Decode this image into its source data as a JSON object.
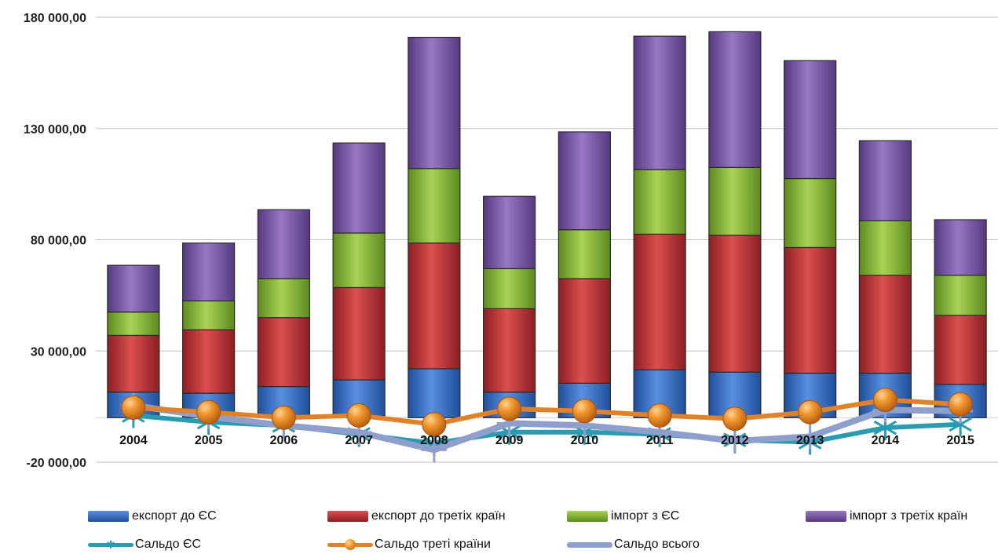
{
  "chart_data": {
    "type": "bar",
    "stacked": true,
    "categories": [
      "2004",
      "2005",
      "2006",
      "2007",
      "2008",
      "2009",
      "2010",
      "2011",
      "2012",
      "2013",
      "2014",
      "2015"
    ],
    "ylim": [
      -20000,
      180000
    ],
    "yticks": [
      -20000,
      30000,
      80000,
      130000,
      180000
    ],
    "ytick_labels": [
      "-20 000,00",
      "30 000,00",
      "80 000,00",
      "130 000,00",
      "180 000,00"
    ],
    "grid": "horizontal",
    "legend_position": "bottom",
    "series": [
      {
        "name": "експорт до ЄС",
        "kind": "bar",
        "color": "#3a6fc8",
        "values": [
          11500,
          11000,
          14000,
          17000,
          22000,
          11500,
          15500,
          21500,
          20500,
          20000,
          20000,
          15000
        ]
      },
      {
        "name": "експорт до третіх країн",
        "kind": "bar",
        "color": "#c0393a",
        "values": [
          25500,
          28500,
          31000,
          41500,
          56500,
          37500,
          47000,
          61000,
          61500,
          56500,
          44000,
          31000
        ]
      },
      {
        "name": "імпорт з ЄС",
        "kind": "bar",
        "color": "#8cb83a",
        "values": [
          10500,
          13000,
          17500,
          24500,
          33500,
          18000,
          22000,
          29000,
          30500,
          31000,
          24500,
          18000
        ]
      },
      {
        "name": "імпорт з третіх країн",
        "kind": "bar",
        "color": "#7d5aa8",
        "values": [
          21000,
          26000,
          31000,
          40500,
          59000,
          32500,
          44000,
          60000,
          61000,
          53000,
          36000,
          25000
        ]
      },
      {
        "name": "Сальдо ЄС",
        "kind": "line",
        "color": "#2a9bb0",
        "marker": "star",
        "values": [
          1000,
          -2000,
          -3500,
          -7500,
          -11500,
          -6500,
          -6500,
          -7500,
          -10000,
          -11000,
          -4500,
          -3000
        ]
      },
      {
        "name": "Сальдо треті країни",
        "kind": "line",
        "color": "#e0822a",
        "marker": "circle",
        "values": [
          4500,
          2500,
          0,
          1000,
          -3000,
          4000,
          3000,
          1000,
          -500,
          2500,
          8000,
          6000
        ]
      },
      {
        "name": "Сальдо всього",
        "kind": "line",
        "color": "#8f9fcc",
        "marker": "cross",
        "values": [
          5500,
          500,
          -3500,
          -6500,
          -14500,
          -2500,
          -3500,
          -6500,
          -10500,
          -8500,
          3500,
          3000
        ]
      }
    ]
  }
}
